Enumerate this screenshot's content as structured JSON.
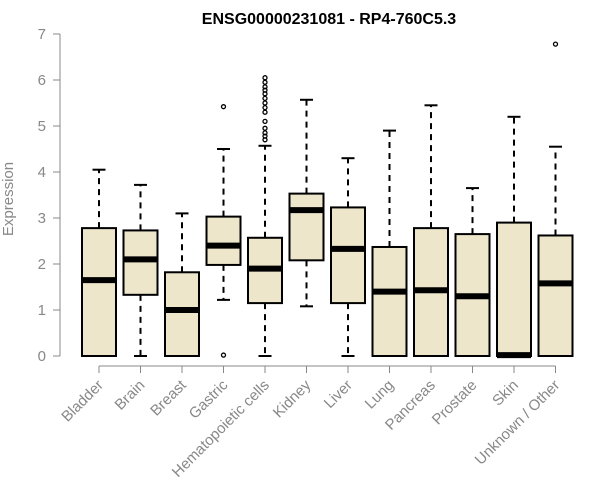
{
  "chart_data": {
    "type": "boxplot",
    "title": "ENSG00000231081 - RP4-760C5.3",
    "ylabel": "Expression",
    "xlabel": "",
    "ylim": [
      0,
      7
    ],
    "yticks": [
      0,
      1,
      2,
      3,
      4,
      5,
      6,
      7
    ],
    "box_fill": "#ede6cb",
    "box_stroke": "#000000",
    "categories": [
      "Bladder",
      "Brain",
      "Breast",
      "Gastric",
      "Hematopoietic cells",
      "Kidney",
      "Liver",
      "Lung",
      "Pancreas",
      "Prostate",
      "Skin",
      "Unknown / Other"
    ],
    "boxes": [
      {
        "name": "Bladder",
        "min": 0,
        "q1": 0,
        "median": 1.65,
        "q3": 2.78,
        "max": 4.05,
        "outliers": []
      },
      {
        "name": "Brain",
        "min": 0,
        "q1": 1.33,
        "median": 2.1,
        "q3": 2.73,
        "max": 3.72,
        "outliers": []
      },
      {
        "name": "Breast",
        "min": 0,
        "q1": 0,
        "median": 1.0,
        "q3": 1.82,
        "max": 3.1,
        "outliers": []
      },
      {
        "name": "Gastric",
        "min": 1.22,
        "q1": 1.98,
        "median": 2.4,
        "q3": 3.03,
        "max": 4.5,
        "outliers": [
          5.42,
          0.02
        ]
      },
      {
        "name": "Hematopoietic cells",
        "min": 0,
        "q1": 1.15,
        "median": 1.9,
        "q3": 2.57,
        "max": 4.57,
        "outliers": [
          4.7,
          4.78,
          4.85,
          4.95,
          5.1,
          5.3,
          5.4,
          5.5,
          5.6,
          5.7,
          5.78,
          5.85,
          5.95,
          6.05
        ]
      },
      {
        "name": "Kidney",
        "min": 1.08,
        "q1": 2.08,
        "median": 3.17,
        "q3": 3.53,
        "max": 5.57,
        "outliers": []
      },
      {
        "name": "Liver",
        "min": 0,
        "q1": 1.15,
        "median": 2.33,
        "q3": 3.23,
        "max": 4.3,
        "outliers": []
      },
      {
        "name": "Lung",
        "min": 0,
        "q1": 0,
        "median": 1.4,
        "q3": 2.37,
        "max": 4.9,
        "outliers": []
      },
      {
        "name": "Pancreas",
        "min": 0,
        "q1": 0,
        "median": 1.43,
        "q3": 2.78,
        "max": 5.45,
        "outliers": []
      },
      {
        "name": "Prostate",
        "min": 0,
        "q1": 0,
        "median": 1.3,
        "q3": 2.65,
        "max": 3.65,
        "outliers": []
      },
      {
        "name": "Skin",
        "min": 0,
        "q1": 0,
        "median": 0.02,
        "q3": 2.9,
        "max": 5.2,
        "outliers": []
      },
      {
        "name": "Unknown / Other",
        "min": 0,
        "q1": 0,
        "median": 1.58,
        "q3": 2.62,
        "max": 4.55,
        "outliers": [
          6.78
        ]
      }
    ]
  }
}
